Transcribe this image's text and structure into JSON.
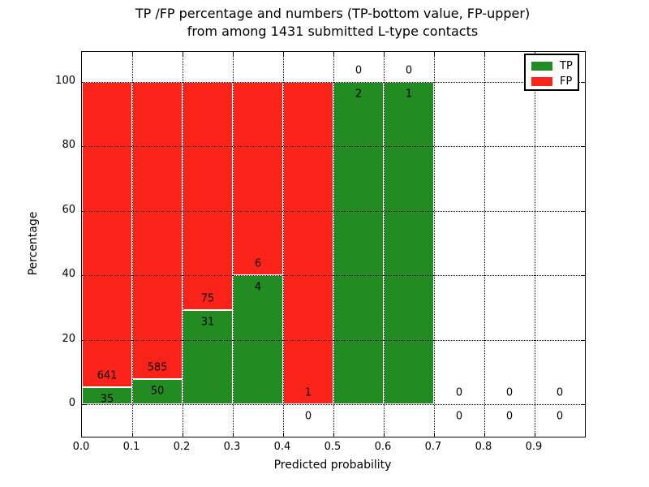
{
  "chart_data": {
    "type": "bar",
    "stacked": true,
    "title_line1": "TP /FP percentage and numbers (TP-bottom value, FP-upper)",
    "title_line2": "from among 1431 submitted L-type contacts",
    "xlabel": "Predicted probability",
    "ylabel": "Percentage",
    "total_submitted": 1431,
    "xlim": [
      0.0,
      1.0
    ],
    "ylim": [
      -10,
      109
    ],
    "grid": "dotted",
    "xticks": [
      "0.0",
      "0.1",
      "0.2",
      "0.3",
      "0.4",
      "0.5",
      "0.6",
      "0.7",
      "0.8",
      "0.9"
    ],
    "yticks": [
      0,
      20,
      40,
      60,
      80,
      100
    ],
    "colors": {
      "tp": "#228b22",
      "fp": "#fa2319"
    },
    "legend": {
      "position": "upper-right",
      "entries": [
        {
          "label": "TP",
          "color": "#228b22"
        },
        {
          "label": "FP",
          "color": "#fa2319"
        }
      ]
    },
    "bins": [
      {
        "range": [
          0.0,
          0.1
        ],
        "tp_count": 35,
        "fp_count": 641,
        "tp_pct": 5.18,
        "has_bar": true
      },
      {
        "range": [
          0.1,
          0.2
        ],
        "tp_count": 50,
        "fp_count": 585,
        "tp_pct": 7.87,
        "has_bar": true
      },
      {
        "range": [
          0.2,
          0.3
        ],
        "tp_count": 31,
        "fp_count": 75,
        "tp_pct": 29.25,
        "has_bar": true
      },
      {
        "range": [
          0.3,
          0.4
        ],
        "tp_count": 4,
        "fp_count": 6,
        "tp_pct": 40.0,
        "has_bar": true
      },
      {
        "range": [
          0.4,
          0.5
        ],
        "tp_count": 0,
        "fp_count": 1,
        "tp_pct": 0.0,
        "has_bar": true
      },
      {
        "range": [
          0.5,
          0.6
        ],
        "tp_count": 2,
        "fp_count": 0,
        "tp_pct": 100.0,
        "has_bar": true
      },
      {
        "range": [
          0.6,
          0.7
        ],
        "tp_count": 1,
        "fp_count": 0,
        "tp_pct": 100.0,
        "has_bar": true
      },
      {
        "range": [
          0.7,
          0.8
        ],
        "tp_count": 0,
        "fp_count": 0,
        "tp_pct": 0.0,
        "has_bar": false
      },
      {
        "range": [
          0.8,
          0.9
        ],
        "tp_count": 0,
        "fp_count": 0,
        "tp_pct": 0.0,
        "has_bar": false
      },
      {
        "range": [
          0.9,
          1.0
        ],
        "tp_count": 0,
        "fp_count": 0,
        "tp_pct": 0.0,
        "has_bar": false
      }
    ]
  }
}
